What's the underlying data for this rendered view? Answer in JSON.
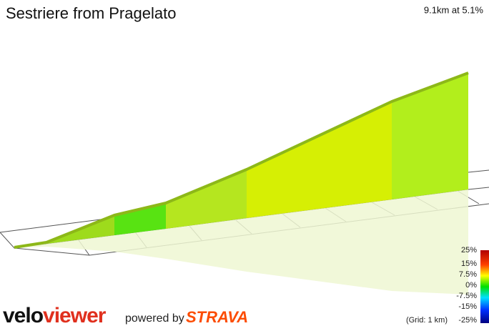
{
  "header": {
    "title": "Sestriere from Pragelato",
    "summary": "9.1km at 5.1%"
  },
  "legend": {
    "labels": [
      "25%",
      "15%",
      "7.5%",
      "0%",
      "-7.5%",
      "-15%",
      "-25%"
    ],
    "grid_note": "(Grid: 1 km)"
  },
  "footer": {
    "logo_part1": "velo",
    "logo_part2": "viewer",
    "powered_by": "powered by",
    "strava": "STRAVA"
  }
}
